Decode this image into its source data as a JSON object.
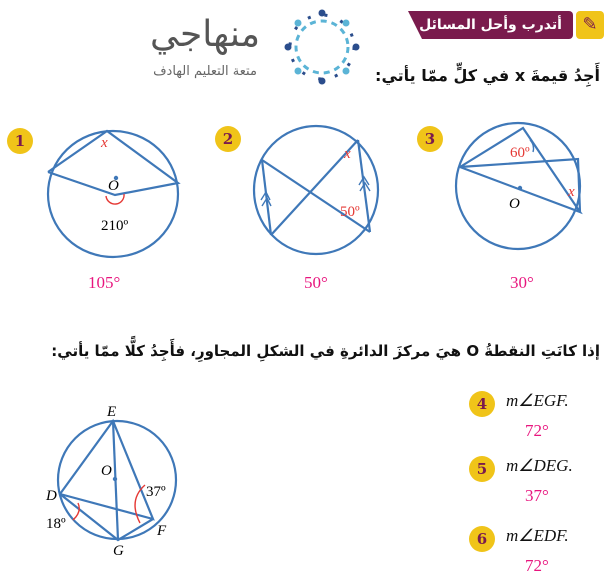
{
  "logo": {
    "name": "منهاجي",
    "tagline": "متعة التعليم الهادف"
  },
  "banner": {
    "title": "أتدرب وأحل المسائل",
    "icon": "pencil-icon"
  },
  "section1": {
    "instruction": "أَجِدُ قيمةَ x في كلٍّ ممّا يأتي:",
    "problems": [
      {
        "number": "1",
        "labels": {
          "x": "x",
          "center": "O",
          "angle": "210º"
        },
        "answer": "105°"
      },
      {
        "number": "2",
        "labels": {
          "x": "x",
          "angle": "50º"
        },
        "answer": "50°"
      },
      {
        "number": "3",
        "labels": {
          "x": "x",
          "center": "O",
          "angle": "60º"
        },
        "answer": "30°"
      }
    ]
  },
  "section2": {
    "instruction": "إذا كانَتِ النقطةُ O هيَ مركزَ الدائرةِ في الشكلِ المجاورِ، فأَجِدُ كلًّا ممّا يأتي:",
    "figure": {
      "E": "E",
      "O": "O",
      "D": "D",
      "G": "G",
      "F": "F",
      "angle1": "37º",
      "angle2": "18º"
    },
    "problems": [
      {
        "number": "4",
        "question": "m∠EGF.",
        "answer": "72°"
      },
      {
        "number": "5",
        "question": "m∠DEG.",
        "answer": "37°"
      },
      {
        "number": "6",
        "question": "m∠EDF.",
        "answer": "72°"
      }
    ]
  },
  "colors": {
    "line": "#3f78b8",
    "answer": "#e8157e",
    "badge": "#f0c419",
    "banner": "#7a1b4d"
  }
}
